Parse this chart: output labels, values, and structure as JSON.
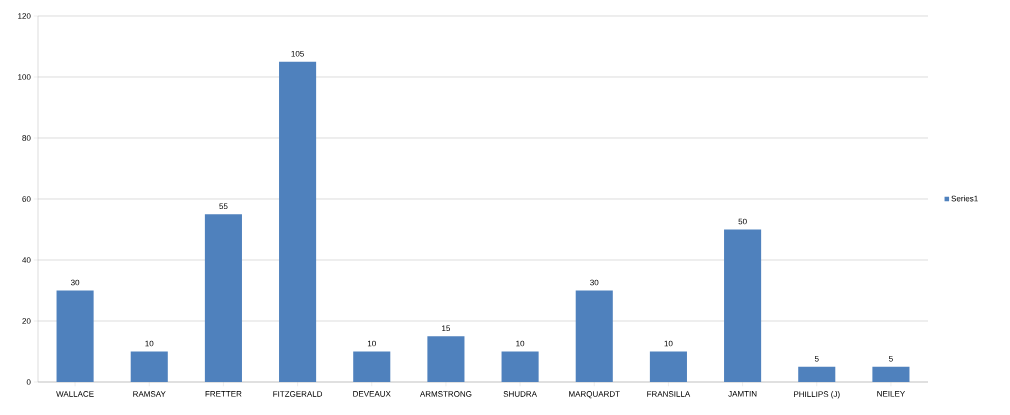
{
  "chart_data": {
    "type": "bar",
    "categories": [
      "WALLACE",
      "RAMSAY",
      "FRETTER",
      "FITZGERALD",
      "DEVEAUX",
      "ARMSTRONG",
      "SHUDRA",
      "MARQUARDT",
      "FRANSILLA",
      "JAMTIN",
      "PHILLIPS (J)",
      "NEILEY"
    ],
    "series": [
      {
        "name": "Series1",
        "color": "#4f81bd",
        "values": [
          30,
          10,
          55,
          105,
          10,
          15,
          10,
          30,
          10,
          50,
          5,
          5
        ]
      }
    ],
    "ylim": [
      0,
      120
    ],
    "yticks": [
      0,
      20,
      40,
      60,
      80,
      100,
      120
    ],
    "grid": "y",
    "legend": "right",
    "data_labels": true
  }
}
